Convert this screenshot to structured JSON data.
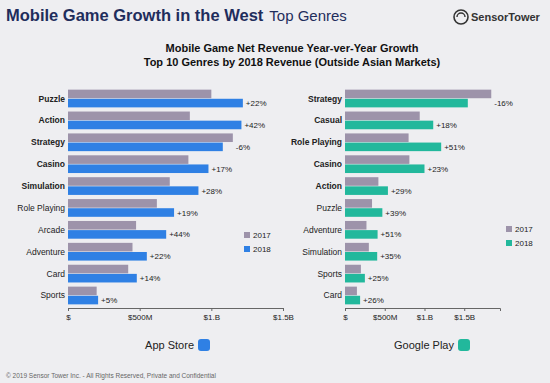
{
  "page": {
    "title": "Mobile Game Growth in the West",
    "subtitle": "Top Genres",
    "brand": "SensorTower",
    "chart_title": [
      "Mobile Game Net Revenue Year-ver-Year Growth",
      "Top 10 Genres by 2018 Revenue (Outside Asian Markets)"
    ],
    "footer": "© 2019 Sensor Tower Inc. - All Rights Reserved, Private and Confidential"
  },
  "chart_data": [
    {
      "type": "bar",
      "orientation": "horizontal",
      "title": "App Store",
      "categories": [
        "Puzzle",
        "Action",
        "Strategy",
        "Casino",
        "Simulation",
        "Role Playing",
        "Arcade",
        "Adventure",
        "Card",
        "Sports"
      ],
      "series": [
        {
          "name": "2017",
          "color": "#9d93aa",
          "values": [
            1000,
            850,
            1150,
            840,
            710,
            620,
            475,
            450,
            420,
            200
          ]
        },
        {
          "name": "2018",
          "color": "#2f80e4",
          "values": [
            1220,
            1210,
            1080,
            980,
            910,
            740,
            685,
            550,
            480,
            210
          ]
        }
      ],
      "annotations": [
        "+22%",
        "+42%",
        "-6%",
        "+17%",
        "+28%",
        "+19%",
        "+44%",
        "+22%",
        "+14%",
        "+5%"
      ],
      "xlim": [
        0,
        1500
      ],
      "xticks": [
        {
          "value": 0,
          "label": "$"
        },
        {
          "value": 500,
          "label": "$500M"
        },
        {
          "value": 1000,
          "label": "$1.B"
        },
        {
          "value": 1500,
          "label": "$1.5B"
        }
      ],
      "grid": false,
      "legend": "right"
    },
    {
      "type": "bar",
      "orientation": "horizontal",
      "title": "Google Play",
      "categories": [
        "Strategy",
        "Casual",
        "Role Playing",
        "Casino",
        "Action",
        "Puzzle",
        "Adventure",
        "Simulation",
        "Sports",
        "Card"
      ],
      "series": [
        {
          "name": "2017",
          "color": "#9d93aa",
          "values": [
            1840,
            940,
            800,
            810,
            420,
            340,
            270,
            300,
            200,
            150
          ]
        },
        {
          "name": "2018",
          "color": "#22b89c",
          "values": [
            1545,
            1110,
            1210,
            1000,
            540,
            470,
            410,
            405,
            250,
            190
          ]
        }
      ],
      "annotations": [
        "-16%",
        "+18%",
        "+51%",
        "+23%",
        "+29%",
        "+39%",
        "+51%",
        "+35%",
        "+25%",
        "+26%"
      ],
      "xlim": [
        0,
        1950
      ],
      "xticks": [
        {
          "value": 0,
          "label": "$"
        },
        {
          "value": 500,
          "label": "$500M"
        },
        {
          "value": 1000,
          "label": "$1.B"
        },
        {
          "value": 1500,
          "label": "$1.5B"
        }
      ],
      "grid": false,
      "legend": "right"
    }
  ]
}
